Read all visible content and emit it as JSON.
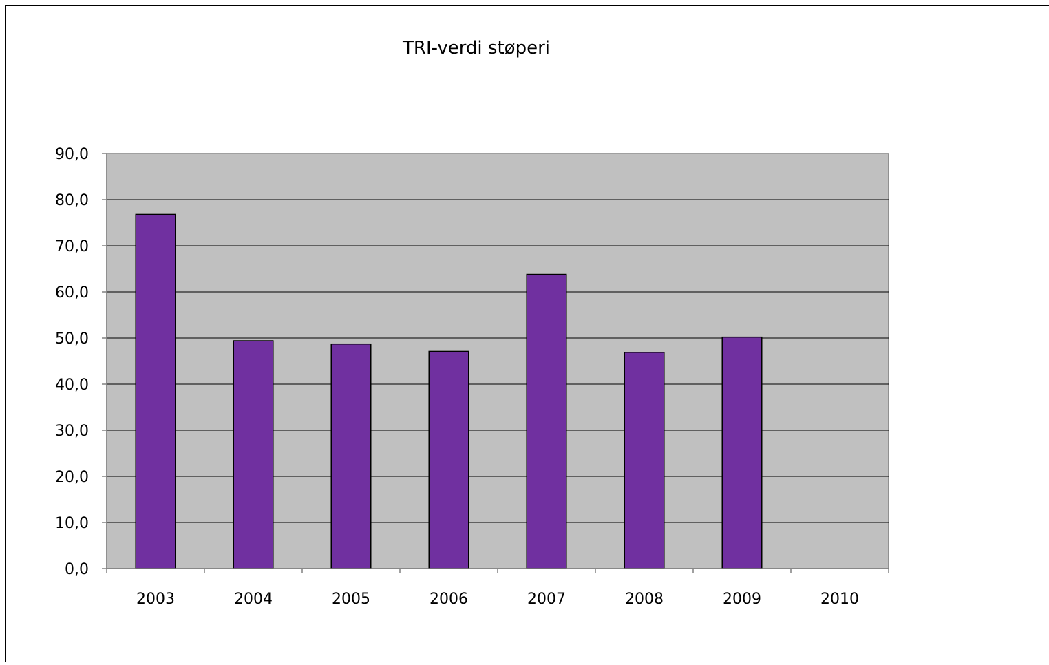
{
  "chart_data": {
    "type": "bar",
    "title": "TRI-verdi støperi",
    "xlabel": "",
    "ylabel": "",
    "categories": [
      "2003",
      "2004",
      "2005",
      "2006",
      "2007",
      "2008",
      "2009",
      "2010"
    ],
    "values": [
      76.8,
      49.4,
      48.7,
      47.1,
      63.8,
      46.9,
      50.2,
      null
    ],
    "ylim": [
      0,
      90
    ],
    "ytick_labels": [
      "0,0",
      "10,0",
      "20,0",
      "30,0",
      "40,0",
      "50,0",
      "60,0",
      "70,0",
      "80,0",
      "90,0"
    ],
    "grid": true,
    "legend": "none",
    "colors": {
      "bar": "#7030a0",
      "plot_area": "#c0c0c0",
      "gridline": "#000000",
      "axis": "#808080",
      "border": "#000000"
    }
  }
}
